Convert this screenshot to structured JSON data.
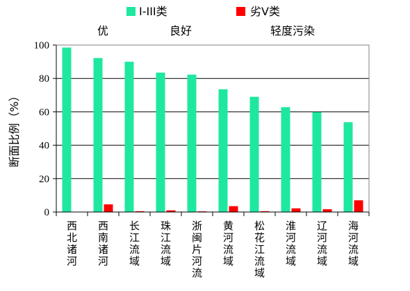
{
  "chart_data": {
    "type": "bar",
    "categories": [
      "西北诸河",
      "西南诸河",
      "长江流域",
      "珠江流域",
      "浙闽片河流",
      "黄河流域",
      "松花江流域",
      "淮河流域",
      "辽河流域",
      "海河流域"
    ],
    "series": [
      {
        "name": "I-III类",
        "color": "#1ee8a0",
        "values": [
          98.5,
          92.2,
          90.0,
          83.5,
          82.3,
          73.5,
          69.0,
          62.8,
          59.8,
          53.8
        ]
      },
      {
        "name": "劣V类",
        "color": "#ff0000",
        "values": [
          0,
          4.6,
          0.5,
          1.0,
          0.4,
          3.5,
          0.5,
          2.2,
          1.7,
          7.0
        ]
      }
    ],
    "group_labels": [
      "优",
      "良好",
      "轻度污染"
    ],
    "ylabel": "断面比例（%）",
    "ylim": [
      0,
      100
    ],
    "yticks": [
      0,
      20,
      40,
      60,
      80,
      100
    ],
    "grid": true,
    "legend": "top"
  }
}
